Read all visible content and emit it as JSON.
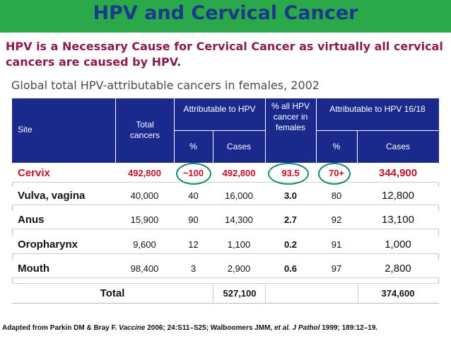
{
  "title": "HPV and Cervical Cancer",
  "subtitle": "HPV is a Necessary Cause for Cervical Cancer as virtually all cervical cancers are caused by HPV",
  "subtitle_end": ".",
  "table_caption": "Global total HPV-attributable cancers in females, 2002",
  "colors": {
    "title_bar": "#2aa84a",
    "header_bg": "#1a2a8c",
    "highlight": "#c0102a",
    "ring": "#1a8a6a"
  },
  "table": {
    "headers": {
      "site": "Site",
      "total": "Total cancers",
      "attr_hpv": "Attributable to HPV",
      "pct_all": "% all HPV cancer in females",
      "attr_1618": "Attributable to HPV 16/18",
      "pct": "%",
      "cases": "Cases",
      "pct2": "%",
      "cases2": "Cases"
    },
    "rows": [
      {
        "site": "Cervix",
        "total": "492,800",
        "pct": "~100",
        "cases": "492,800",
        "pct_all": "93.5",
        "pct1618": "70+",
        "cases1618": "344,900"
      },
      {
        "site": "Vulva, vagina",
        "total": "40,000",
        "pct": "40",
        "cases": "16,000",
        "pct_all": "3.0",
        "pct1618": "80",
        "cases1618": "12,800"
      },
      {
        "site": "Anus",
        "total": "15,900",
        "pct": "90",
        "cases": "14,300",
        "pct_all": "2.7",
        "pct1618": "92",
        "cases1618": "13,100"
      },
      {
        "site": "Oropharynx",
        "total": "9,600",
        "pct": "12",
        "cases": "1,100",
        "pct_all": "0.2",
        "pct1618": "91",
        "cases1618": "1,000"
      },
      {
        "site": "Mouth",
        "total": "98,400",
        "pct": "3",
        "cases": "2,900",
        "pct_all": "0.6",
        "pct1618": "97",
        "cases1618": "2,800"
      }
    ],
    "total_row": {
      "label": "Total",
      "cases": "527,100",
      "cases1618": "374,600"
    }
  },
  "footer": {
    "prefix": "Adapted from Parkin DM & Bray F. ",
    "journal1": "Vaccine",
    "mid1": " 2006; 24:S11–S25; Walboomers JMM, ",
    "etal": "et al. J Pathol",
    "end": " 1999; 189:12–19."
  }
}
